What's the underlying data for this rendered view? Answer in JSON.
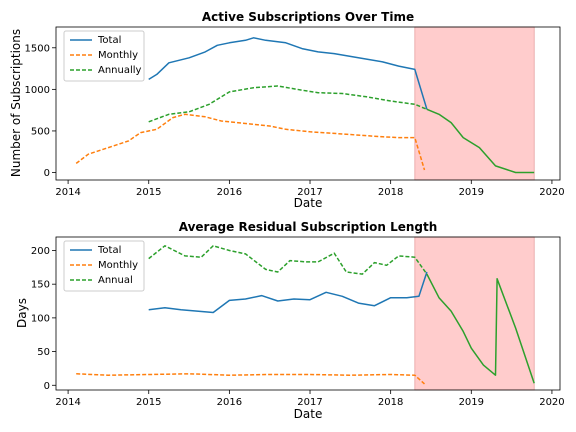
{
  "colors": {
    "total": "#1f77b4",
    "monthly": "#ff7f0e",
    "annual": "#2ca02c",
    "shade": "#ffcccc",
    "shade_edge": "#e6a0a0"
  },
  "chart_data": [
    {
      "type": "line",
      "title": "Active Subscriptions Over Time",
      "xlabel": "Date",
      "ylabel": "Number of Subscriptions",
      "xlim": [
        2013.85,
        2020.1
      ],
      "ylim": [
        -90,
        1750
      ],
      "xticks": [
        2014,
        2015,
        2016,
        2017,
        2018,
        2019,
        2020
      ],
      "xtick_labels": [
        "2014",
        "2015",
        "2016",
        "2017",
        "2018",
        "2019",
        "2020"
      ],
      "yticks": [
        0,
        500,
        1000,
        1500
      ],
      "ytick_labels": [
        "0",
        "500",
        "1000",
        "1500"
      ],
      "shaded_region": [
        2018.3,
        2019.78
      ],
      "legend": "upper left",
      "series": [
        {
          "name": "Total",
          "color_key": "total",
          "style": "solid",
          "x": [
            2015.0,
            2015.1,
            2015.25,
            2015.5,
            2015.7,
            2015.85,
            2016.0,
            2016.2,
            2016.3,
            2016.45,
            2016.7,
            2016.9,
            2017.1,
            2017.3,
            2017.6,
            2017.9,
            2018.1,
            2018.3,
            2018.45
          ],
          "y": [
            1120,
            1180,
            1320,
            1380,
            1450,
            1530,
            1560,
            1590,
            1620,
            1590,
            1560,
            1490,
            1450,
            1430,
            1380,
            1330,
            1280,
            1240,
            760
          ]
        },
        {
          "name": "Monthly",
          "color_key": "monthly",
          "style": "dashed",
          "x": [
            2014.1,
            2014.25,
            2014.5,
            2014.75,
            2014.9,
            2015.1,
            2015.3,
            2015.45,
            2015.7,
            2015.9,
            2016.2,
            2016.5,
            2016.7,
            2017.0,
            2017.3,
            2017.6,
            2017.9,
            2018.1,
            2018.3,
            2018.42
          ],
          "y": [
            110,
            220,
            300,
            380,
            480,
            520,
            660,
            700,
            670,
            620,
            590,
            560,
            520,
            490,
            470,
            450,
            430,
            420,
            420,
            30
          ]
        },
        {
          "name": "Annually",
          "color_key": "annual",
          "style": "dashed",
          "x": [
            2015.0,
            2015.25,
            2015.5,
            2015.75,
            2016.0,
            2016.3,
            2016.6,
            2016.9,
            2017.1,
            2017.4,
            2017.7,
            2018.0,
            2018.3,
            2018.45
          ],
          "y": [
            610,
            700,
            730,
            820,
            970,
            1020,
            1040,
            990,
            960,
            950,
            910,
            860,
            820,
            760
          ]
        },
        {
          "name": "",
          "color_key": "annual",
          "style": "solid",
          "x": [
            2018.45,
            2018.6,
            2018.75,
            2018.9,
            2019.1,
            2019.3,
            2019.55,
            2019.78
          ],
          "y": [
            760,
            700,
            600,
            420,
            300,
            80,
            0,
            0
          ]
        }
      ]
    },
    {
      "type": "line",
      "title": "Average Residual Subscription Length",
      "xlabel": "Date",
      "ylabel": "Days",
      "xlim": [
        2013.85,
        2020.1
      ],
      "ylim": [
        -7,
        220
      ],
      "xticks": [
        2014,
        2015,
        2016,
        2017,
        2018,
        2019,
        2020
      ],
      "xtick_labels": [
        "2014",
        "2015",
        "2016",
        "2017",
        "2018",
        "2019",
        "2020"
      ],
      "yticks": [
        0,
        50,
        100,
        150,
        200
      ],
      "ytick_labels": [
        "0",
        "50",
        "100",
        "150",
        "200"
      ],
      "shaded_region": [
        2018.3,
        2019.78
      ],
      "legend": "upper left",
      "series": [
        {
          "name": "Total",
          "color_key": "total",
          "style": "solid",
          "x": [
            2015.0,
            2015.2,
            2015.4,
            2015.6,
            2015.8,
            2016.0,
            2016.2,
            2016.4,
            2016.6,
            2016.8,
            2017.0,
            2017.2,
            2017.4,
            2017.6,
            2017.8,
            2018.0,
            2018.2,
            2018.35,
            2018.45
          ],
          "y": [
            112,
            115,
            112,
            110,
            108,
            126,
            128,
            133,
            125,
            128,
            127,
            138,
            132,
            122,
            118,
            130,
            130,
            132,
            168
          ]
        },
        {
          "name": "Monthly",
          "color_key": "monthly",
          "style": "dashed",
          "x": [
            2014.1,
            2014.5,
            2015.0,
            2015.5,
            2016.0,
            2016.5,
            2017.0,
            2017.5,
            2018.0,
            2018.3,
            2018.42
          ],
          "y": [
            17,
            15,
            16,
            17,
            15,
            16,
            16,
            15,
            16,
            15,
            2
          ]
        },
        {
          "name": "Annual",
          "color_key": "annual",
          "style": "dashed",
          "x": [
            2015.0,
            2015.2,
            2015.45,
            2015.65,
            2015.8,
            2016.0,
            2016.2,
            2016.45,
            2016.6,
            2016.75,
            2016.95,
            2017.1,
            2017.3,
            2017.45,
            2017.65,
            2017.8,
            2017.95,
            2018.1,
            2018.3,
            2018.45
          ],
          "y": [
            188,
            207,
            192,
            190,
            207,
            200,
            195,
            172,
            168,
            185,
            183,
            183,
            196,
            168,
            165,
            182,
            178,
            192,
            190,
            165
          ]
        },
        {
          "name": "",
          "color_key": "annual",
          "style": "solid",
          "x": [
            2018.45,
            2018.6,
            2018.75,
            2018.9,
            2019.0,
            2019.15,
            2019.3,
            2019.32,
            2019.55,
            2019.78
          ],
          "y": [
            165,
            130,
            110,
            80,
            55,
            30,
            15,
            158,
            85,
            3
          ]
        }
      ]
    }
  ]
}
